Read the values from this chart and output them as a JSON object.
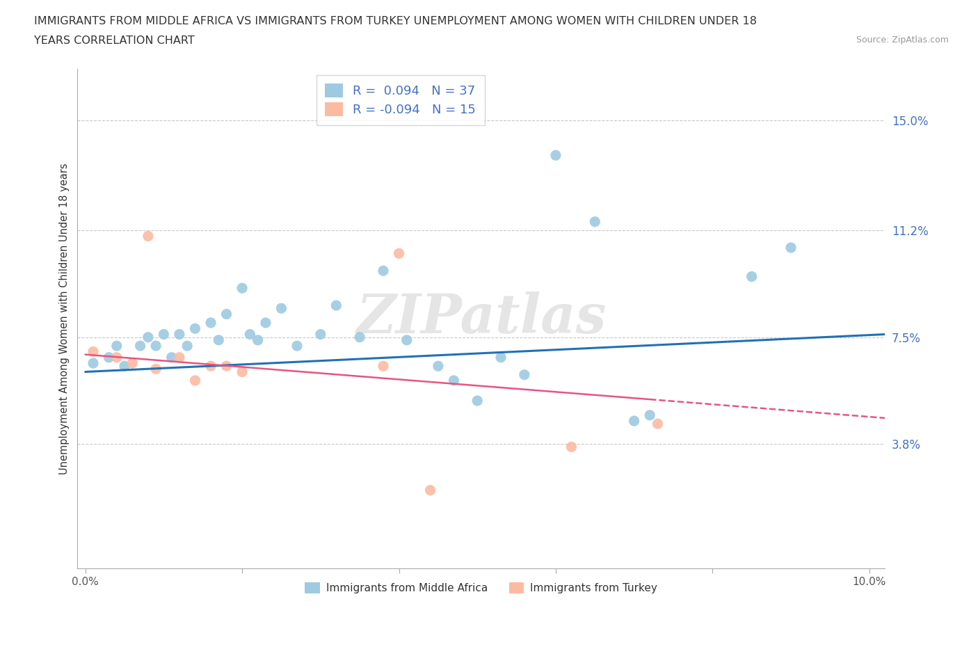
{
  "title_line1": "IMMIGRANTS FROM MIDDLE AFRICA VS IMMIGRANTS FROM TURKEY UNEMPLOYMENT AMONG WOMEN WITH CHILDREN UNDER 18",
  "title_line2": "YEARS CORRELATION CHART",
  "source": "Source: ZipAtlas.com",
  "ylabel": "Unemployment Among Women with Children Under 18 years",
  "xlim": [
    -0.001,
    0.102
  ],
  "ylim": [
    -0.005,
    0.168
  ],
  "yticks": [
    0.038,
    0.075,
    0.112,
    0.15
  ],
  "ytick_labels": [
    "3.8%",
    "7.5%",
    "11.2%",
    "15.0%"
  ],
  "xticks": [
    0.0,
    0.02,
    0.04,
    0.06,
    0.08,
    0.1
  ],
  "xtick_labels": [
    "0.0%",
    "",
    "",
    "",
    "",
    "10.0%"
  ],
  "legend_label1": "Immigrants from Middle Africa",
  "legend_label2": "Immigrants from Turkey",
  "r1": 0.094,
  "n1": 37,
  "r2": -0.094,
  "n2": 15,
  "color_blue": "#9ecae1",
  "color_pink": "#fcbba1",
  "color_blue_line": "#2171b5",
  "color_pink_line": "#e75480",
  "color_blue_text": "#4472c4",
  "background_color": "#ffffff",
  "grid_color": "#c8c8c8",
  "watermark": "ZIPatlas",
  "blue_scatter_x": [
    0.001,
    0.003,
    0.004,
    0.005,
    0.007,
    0.008,
    0.009,
    0.01,
    0.011,
    0.012,
    0.013,
    0.014,
    0.016,
    0.017,
    0.018,
    0.02,
    0.021,
    0.022,
    0.023,
    0.025,
    0.027,
    0.03,
    0.032,
    0.035,
    0.038,
    0.041,
    0.045,
    0.047,
    0.05,
    0.053,
    0.056,
    0.06,
    0.065,
    0.07,
    0.072,
    0.085,
    0.09
  ],
  "blue_scatter_y": [
    0.066,
    0.068,
    0.072,
    0.065,
    0.072,
    0.075,
    0.072,
    0.076,
    0.068,
    0.076,
    0.072,
    0.078,
    0.08,
    0.074,
    0.083,
    0.092,
    0.076,
    0.074,
    0.08,
    0.085,
    0.072,
    0.076,
    0.086,
    0.075,
    0.098,
    0.074,
    0.065,
    0.06,
    0.053,
    0.068,
    0.062,
    0.138,
    0.115,
    0.046,
    0.048,
    0.096,
    0.106
  ],
  "pink_scatter_x": [
    0.001,
    0.004,
    0.006,
    0.008,
    0.009,
    0.012,
    0.014,
    0.016,
    0.018,
    0.02,
    0.038,
    0.04,
    0.044,
    0.062,
    0.073
  ],
  "pink_scatter_y": [
    0.07,
    0.068,
    0.066,
    0.11,
    0.064,
    0.068,
    0.06,
    0.065,
    0.065,
    0.063,
    0.065,
    0.104,
    0.022,
    0.037,
    0.045
  ],
  "blue_line_x0": 0.0,
  "blue_line_x1": 0.102,
  "blue_line_y0": 0.063,
  "blue_line_y1": 0.076,
  "pink_line_x0": 0.0,
  "pink_line_x1": 0.102,
  "pink_line_y0": 0.069,
  "pink_line_y1": 0.047
}
